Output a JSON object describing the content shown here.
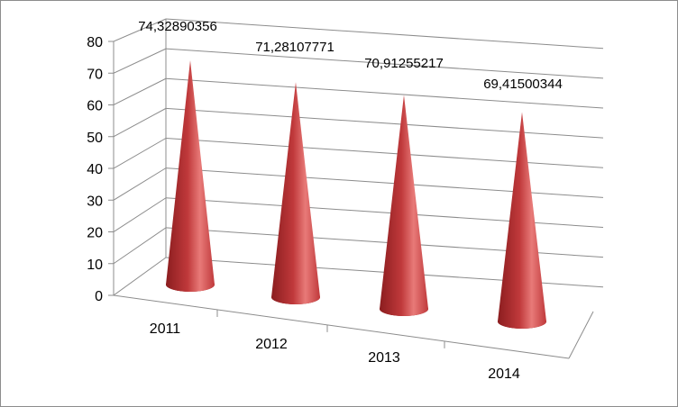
{
  "chart_data": {
    "type": "bar",
    "style": "3d-cone",
    "categories": [
      "2011",
      "2012",
      "2013",
      "2014"
    ],
    "series": [
      {
        "values": [
          74.32890356,
          71.28107771,
          70.91255217,
          69.41500344
        ],
        "value_labels": [
          "74,32890356",
          "71,28107771",
          "70,91255217",
          "69,41500344"
        ]
      }
    ],
    "y_ticks": [
      "0",
      "10",
      "20",
      "30",
      "40",
      "50",
      "60",
      "70",
      "80"
    ],
    "ylim": [
      0,
      80
    ],
    "grid": true,
    "legend": "none",
    "colors": {
      "cone_dark": "#8b1d1f",
      "cone_mid": "#c0393b",
      "cone_light": "#e87a78",
      "grid": "#8c8c8c"
    }
  }
}
